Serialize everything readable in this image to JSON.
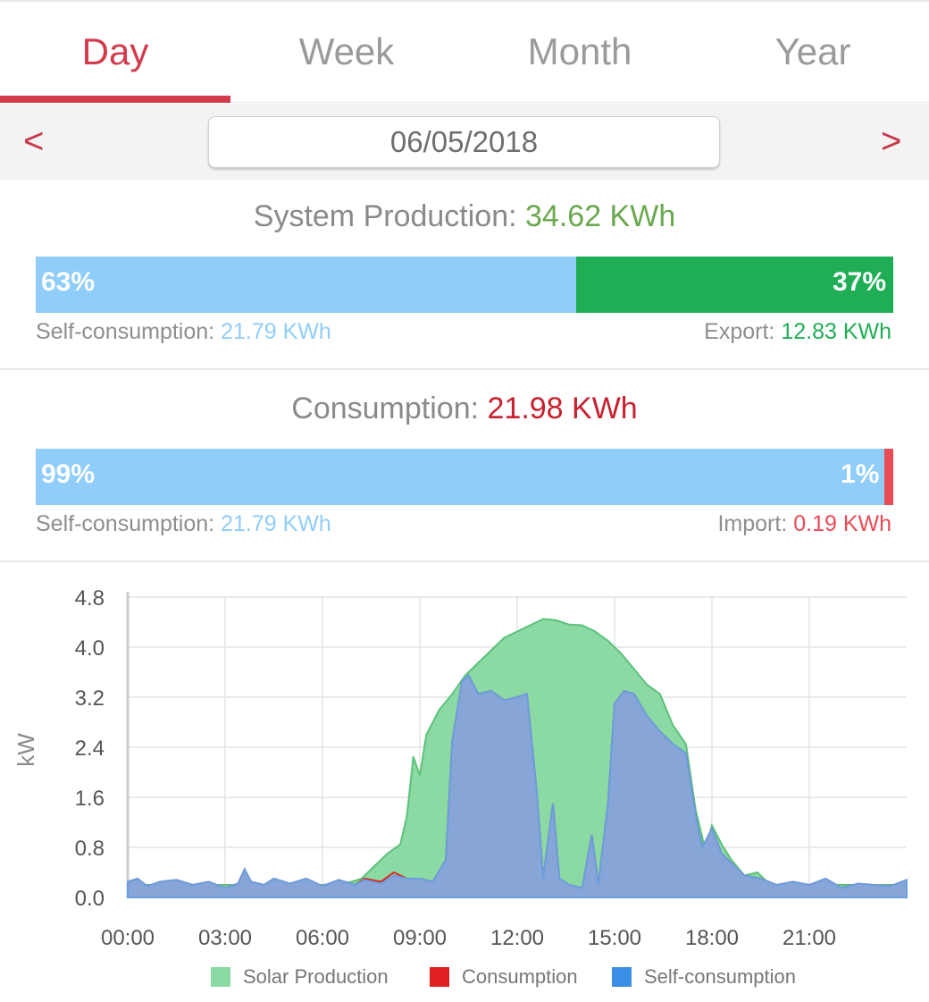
{
  "tabs": [
    {
      "label": "Day",
      "active": true
    },
    {
      "label": "Week",
      "active": false
    },
    {
      "label": "Month",
      "active": false
    },
    {
      "label": "Year",
      "active": false
    }
  ],
  "date_nav": {
    "prev": "<",
    "date": "06/05/2018",
    "next": ">"
  },
  "production": {
    "label": "System Production:",
    "value": "34.62 KWh",
    "self_pct": "63%",
    "export_pct": "37%",
    "self_fraction": 0.63,
    "self_label": "Self-consumption:",
    "self_value": "21.79 KWh",
    "export_label": "Export:",
    "export_value": "12.83 KWh"
  },
  "consumption": {
    "label": "Consumption:",
    "value": "21.98 KWh",
    "self_pct": "99%",
    "import_pct": "1%",
    "self_fraction": 0.99,
    "self_label": "Self-consumption:",
    "self_value": "21.79 KWh",
    "import_label": "Import:",
    "import_value": "0.19 KWh"
  },
  "colors": {
    "accent": "#d23b4b",
    "green_text": "#6aa84f",
    "self_blue": "#90cdf9",
    "export_green": "#1fae55",
    "import_red": "#e94b57",
    "solar_fill": "#8bd9a3",
    "solar_line": "#5cc27a",
    "selfcons_fill": "#87a5d6",
    "selfcons_line": "#6a9ee0",
    "consumption_line": "#e02020"
  },
  "chart_data": {
    "type": "area",
    "ylabel": "kW",
    "ylim": [
      0,
      4.8
    ],
    "yticks": [
      "0.0",
      "0.8",
      "1.6",
      "2.4",
      "3.2",
      "4.0",
      "4.8"
    ],
    "xlim": [
      0,
      24
    ],
    "xticks": [
      "00:00",
      "03:00",
      "06:00",
      "09:00",
      "12:00",
      "15:00",
      "18:00",
      "21:00"
    ],
    "grid": true,
    "legend_position": "bottom",
    "series": [
      {
        "name": "Solar Production",
        "color": "#8bd9a3",
        "points": [
          [
            0,
            0.2
          ],
          [
            6,
            0.2
          ],
          [
            6.9,
            0.25
          ],
          [
            7.2,
            0.3
          ],
          [
            7.5,
            0.45
          ],
          [
            8.0,
            0.7
          ],
          [
            8.4,
            0.85
          ],
          [
            8.6,
            1.3
          ],
          [
            8.8,
            2.25
          ],
          [
            9.0,
            1.95
          ],
          [
            9.2,
            2.6
          ],
          [
            9.6,
            3.0
          ],
          [
            10.0,
            3.25
          ],
          [
            10.4,
            3.55
          ],
          [
            10.8,
            3.75
          ],
          [
            11.2,
            3.95
          ],
          [
            11.6,
            4.15
          ],
          [
            12.0,
            4.25
          ],
          [
            12.4,
            4.35
          ],
          [
            12.8,
            4.45
          ],
          [
            13.2,
            4.43
          ],
          [
            13.6,
            4.36
          ],
          [
            14.0,
            4.35
          ],
          [
            14.4,
            4.25
          ],
          [
            14.8,
            4.1
          ],
          [
            15.2,
            3.9
          ],
          [
            15.6,
            3.65
          ],
          [
            16.0,
            3.4
          ],
          [
            16.4,
            3.25
          ],
          [
            16.8,
            2.75
          ],
          [
            17.2,
            2.45
          ],
          [
            17.5,
            1.4
          ],
          [
            17.8,
            0.75
          ],
          [
            18.0,
            1.15
          ],
          [
            18.3,
            0.85
          ],
          [
            18.6,
            0.6
          ],
          [
            19.0,
            0.35
          ],
          [
            19.4,
            0.4
          ],
          [
            19.8,
            0.2
          ],
          [
            24,
            0.2
          ]
        ]
      },
      {
        "name": "Consumption",
        "color": "#e02020",
        "points": [
          [
            0,
            0.25
          ],
          [
            0.3,
            0.3
          ],
          [
            0.6,
            0.18
          ],
          [
            1.0,
            0.25
          ],
          [
            1.5,
            0.28
          ],
          [
            2.0,
            0.2
          ],
          [
            2.5,
            0.25
          ],
          [
            3.0,
            0.15
          ],
          [
            3.4,
            0.22
          ],
          [
            3.6,
            0.45
          ],
          [
            3.8,
            0.25
          ],
          [
            4.2,
            0.2
          ],
          [
            4.5,
            0.3
          ],
          [
            5.0,
            0.22
          ],
          [
            5.5,
            0.3
          ],
          [
            6.0,
            0.18
          ],
          [
            6.5,
            0.28
          ],
          [
            7.0,
            0.2
          ],
          [
            7.3,
            0.3
          ],
          [
            7.8,
            0.25
          ],
          [
            8.2,
            0.4
          ],
          [
            8.6,
            0.3
          ],
          [
            9.0,
            0.3
          ],
          [
            9.4,
            0.25
          ],
          [
            9.8,
            0.6
          ],
          [
            10.0,
            2.5
          ],
          [
            10.3,
            3.45
          ],
          [
            10.5,
            3.55
          ],
          [
            10.8,
            3.25
          ],
          [
            11.2,
            3.3
          ],
          [
            11.6,
            3.15
          ],
          [
            12.0,
            3.2
          ],
          [
            12.3,
            3.25
          ],
          [
            12.6,
            1.7
          ],
          [
            12.8,
            0.3
          ],
          [
            13.1,
            1.5
          ],
          [
            13.3,
            0.3
          ],
          [
            13.6,
            0.2
          ],
          [
            14.0,
            0.15
          ],
          [
            14.3,
            1.0
          ],
          [
            14.5,
            0.2
          ],
          [
            14.8,
            1.5
          ],
          [
            15.0,
            3.1
          ],
          [
            15.3,
            3.3
          ],
          [
            15.6,
            3.25
          ],
          [
            16.0,
            2.9
          ],
          [
            16.4,
            2.65
          ],
          [
            16.8,
            2.45
          ],
          [
            17.2,
            2.3
          ],
          [
            17.5,
            1.3
          ],
          [
            17.7,
            0.8
          ],
          [
            18.0,
            1.1
          ],
          [
            18.3,
            0.7
          ],
          [
            18.6,
            0.55
          ],
          [
            19.0,
            0.35
          ],
          [
            19.5,
            0.3
          ],
          [
            20.0,
            0.2
          ],
          [
            20.5,
            0.25
          ],
          [
            21.0,
            0.2
          ],
          [
            21.5,
            0.3
          ],
          [
            22.0,
            0.15
          ],
          [
            22.5,
            0.22
          ],
          [
            23.0,
            0.2
          ],
          [
            23.5,
            0.18
          ],
          [
            24.0,
            0.28
          ]
        ]
      },
      {
        "name": "Self-consumption",
        "color": "#87a5d6",
        "points": [
          [
            0,
            0.25
          ],
          [
            0.3,
            0.3
          ],
          [
            0.6,
            0.18
          ],
          [
            1.0,
            0.25
          ],
          [
            1.5,
            0.28
          ],
          [
            2.0,
            0.2
          ],
          [
            2.5,
            0.25
          ],
          [
            3.0,
            0.15
          ],
          [
            3.4,
            0.22
          ],
          [
            3.6,
            0.45
          ],
          [
            3.8,
            0.25
          ],
          [
            4.2,
            0.2
          ],
          [
            4.5,
            0.3
          ],
          [
            5.0,
            0.22
          ],
          [
            5.5,
            0.3
          ],
          [
            6.0,
            0.18
          ],
          [
            6.5,
            0.28
          ],
          [
            7.0,
            0.2
          ],
          [
            7.3,
            0.28
          ],
          [
            7.8,
            0.22
          ],
          [
            8.2,
            0.35
          ],
          [
            8.6,
            0.3
          ],
          [
            9.0,
            0.3
          ],
          [
            9.4,
            0.25
          ],
          [
            9.8,
            0.6
          ],
          [
            10.0,
            2.5
          ],
          [
            10.3,
            3.45
          ],
          [
            10.5,
            3.55
          ],
          [
            10.8,
            3.25
          ],
          [
            11.2,
            3.3
          ],
          [
            11.6,
            3.15
          ],
          [
            12.0,
            3.2
          ],
          [
            12.3,
            3.25
          ],
          [
            12.6,
            1.7
          ],
          [
            12.8,
            0.3
          ],
          [
            13.1,
            1.5
          ],
          [
            13.3,
            0.3
          ],
          [
            13.6,
            0.2
          ],
          [
            14.0,
            0.15
          ],
          [
            14.3,
            1.0
          ],
          [
            14.5,
            0.2
          ],
          [
            14.8,
            1.5
          ],
          [
            15.0,
            3.1
          ],
          [
            15.3,
            3.3
          ],
          [
            15.6,
            3.25
          ],
          [
            16.0,
            2.9
          ],
          [
            16.4,
            2.65
          ],
          [
            16.8,
            2.45
          ],
          [
            17.2,
            2.3
          ],
          [
            17.5,
            1.3
          ],
          [
            17.7,
            0.8
          ],
          [
            18.0,
            1.1
          ],
          [
            18.3,
            0.7
          ],
          [
            18.6,
            0.55
          ],
          [
            19.0,
            0.35
          ],
          [
            19.5,
            0.3
          ],
          [
            20.0,
            0.2
          ],
          [
            20.5,
            0.25
          ],
          [
            21.0,
            0.2
          ],
          [
            21.5,
            0.3
          ],
          [
            22.0,
            0.15
          ],
          [
            22.5,
            0.22
          ],
          [
            23.0,
            0.2
          ],
          [
            23.5,
            0.18
          ],
          [
            24.0,
            0.28
          ]
        ]
      }
    ]
  }
}
